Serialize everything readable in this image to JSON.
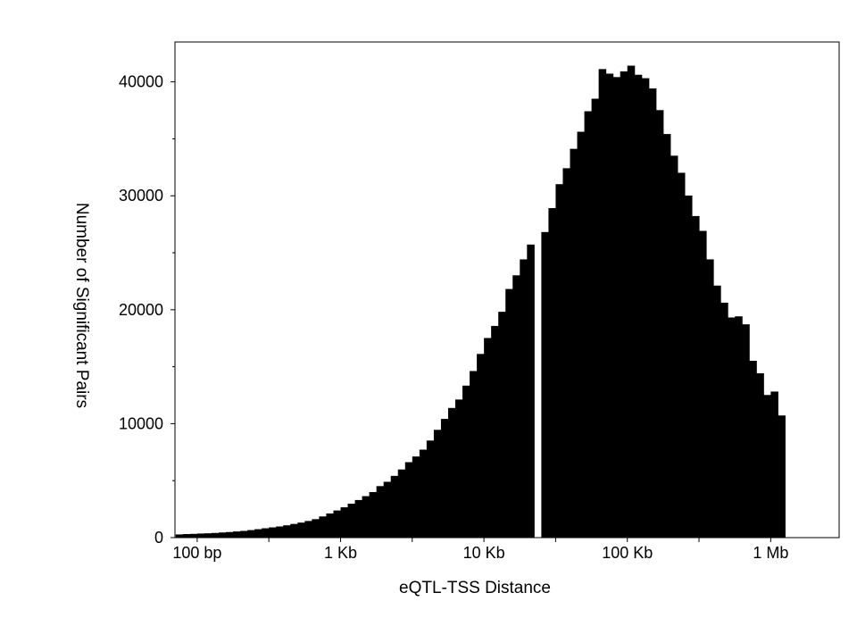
{
  "chart_data": {
    "type": "bar",
    "title": "",
    "xlabel": "eQTL-TSS Distance",
    "ylabel": "Number of Significant Pairs",
    "x_scale": "log",
    "xlim": [
      70,
      3000000
    ],
    "ylim": [
      0,
      43500
    ],
    "grid": false,
    "legend": "none",
    "bar_color": "#000000",
    "bin_edges_log10_start": 1.85,
    "bin_width_log10": 0.05,
    "x_ticks": [
      {
        "value": 100,
        "label": "100 bp"
      },
      {
        "value": 1000,
        "label": "1 Kb"
      },
      {
        "value": 10000,
        "label": "10 Kb"
      },
      {
        "value": 100000,
        "label": "100 Kb"
      },
      {
        "value": 1000000,
        "label": "1 Mb"
      }
    ],
    "x_minor_ticks": [
      31.6,
      316,
      3160,
      31600,
      316000,
      3160000
    ],
    "y_ticks": [
      {
        "value": 0,
        "label": "0"
      },
      {
        "value": 10000,
        "label": "10000"
      },
      {
        "value": 20000,
        "label": "20000"
      },
      {
        "value": 30000,
        "label": "30000"
      },
      {
        "value": 40000,
        "label": "40000"
      }
    ],
    "y_minor_ticks": [
      5000,
      15000,
      25000,
      35000
    ],
    "values": [
      280,
      310,
      330,
      360,
      380,
      410,
      450,
      490,
      540,
      590,
      660,
      740,
      820,
      900,
      980,
      1080,
      1200,
      1320,
      1460,
      1620,
      1860,
      2120,
      2380,
      2660,
      2980,
      3300,
      3640,
      4000,
      4520,
      4900,
      5420,
      5980,
      6620,
      7120,
      7720,
      8520,
      9460,
      10420,
      11380,
      12120,
      13340,
      14620,
      16120,
      17520,
      18580,
      19820,
      21820,
      23020,
      24420,
      25720,
      0,
      26820,
      28920,
      31020,
      32420,
      34120,
      35620,
      37420,
      38520,
      41120,
      40720,
      40420,
      40920,
      41420,
      40620,
      40320,
      39420,
      37520,
      35420,
      33520,
      32020,
      30020,
      28220,
      26920,
      24420,
      22120,
      20620,
      19320,
      19420,
      18720,
      15520,
      14420,
      12520,
      12820,
      10720
    ]
  }
}
